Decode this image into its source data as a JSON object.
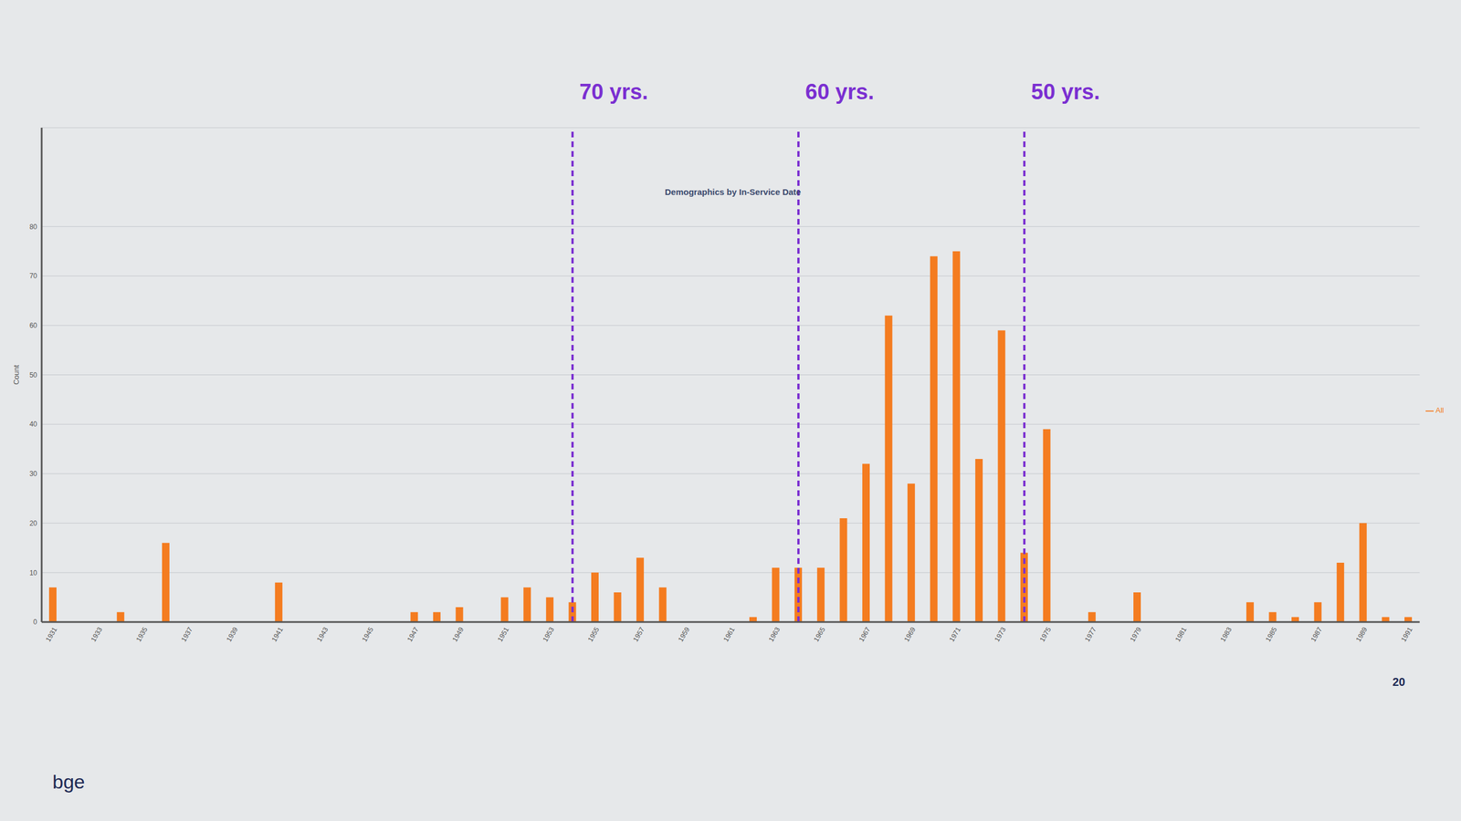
{
  "chart_data": {
    "type": "bar",
    "title": "Demographics by In-Service Date",
    "y_label": "Count",
    "categories": [
      "1931",
      null,
      "1933",
      null,
      "1935",
      null,
      "1937",
      null,
      "1939",
      null,
      "1941",
      null,
      "1943",
      null,
      "1945",
      null,
      "1947",
      null,
      "1949",
      null,
      "1951",
      null,
      "1953",
      null,
      "1955",
      null,
      "1957",
      null,
      "1959",
      null,
      "1961",
      null,
      "1963",
      null,
      "1965",
      null,
      "1967",
      null,
      "1969",
      null,
      "1971",
      null,
      "1973",
      null,
      "1975",
      null,
      "1977",
      null,
      "1979",
      null,
      "1981",
      null,
      "1983",
      null,
      "1985",
      null,
      "1987",
      null,
      "1989",
      null,
      "1991"
    ],
    "series": [
      {
        "name": "All",
        "color": "#f47c20",
        "values": [
          7,
          0,
          0,
          2,
          0,
          16,
          0,
          0,
          0,
          0,
          8,
          0,
          0,
          0,
          0,
          0,
          2,
          2,
          3,
          0,
          5,
          7,
          5,
          4,
          10,
          6,
          13,
          7,
          0,
          0,
          0,
          1,
          11,
          11,
          11,
          21,
          32,
          62,
          28,
          74,
          75,
          33,
          59,
          14,
          39,
          0,
          2,
          0,
          6,
          0,
          0,
          0,
          0,
          4,
          2,
          1,
          4,
          12,
          20,
          1,
          1
        ]
      }
    ],
    "ylim": [
      0,
      100
    ],
    "yticks": [
      0,
      10,
      20,
      30,
      40,
      50,
      60,
      70,
      80
    ],
    "grid": true,
    "legend": "right",
    "annotations": [
      {
        "position": 23,
        "label": "70 yrs.",
        "color": "#7b2fd1",
        "line_style": "dashed"
      },
      {
        "position": 33,
        "label": "60 yrs.",
        "color": "#7b2fd1",
        "line_style": "dashed"
      },
      {
        "position": 43,
        "label": "50 yrs.",
        "color": "#7b2fd1",
        "line_style": "dashed"
      }
    ],
    "footer": "bge",
    "corner_text": "20"
  }
}
